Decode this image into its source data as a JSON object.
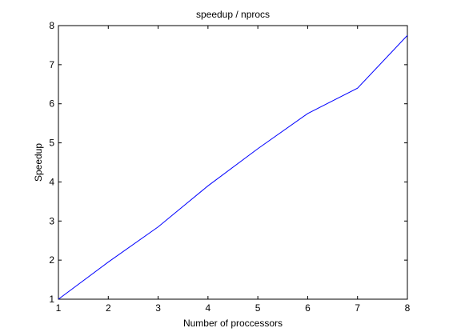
{
  "chart_data": {
    "type": "line",
    "title": "speedup / nprocs",
    "xlabel": "Number of proccessors",
    "ylabel": "Speedup",
    "xlim": [
      1,
      8
    ],
    "ylim": [
      1,
      8
    ],
    "x_ticks": [
      1,
      2,
      3,
      4,
      5,
      6,
      7,
      8
    ],
    "y_ticks": [
      1,
      2,
      3,
      4,
      5,
      6,
      7,
      8
    ],
    "grid": false,
    "legend": "none",
    "series": [
      {
        "color": "#0000ff",
        "x": [
          1,
          2,
          3,
          4,
          5,
          6,
          7,
          8
        ],
        "y": [
          1.0,
          1.95,
          2.85,
          3.9,
          4.85,
          5.75,
          6.4,
          7.75
        ]
      }
    ]
  }
}
